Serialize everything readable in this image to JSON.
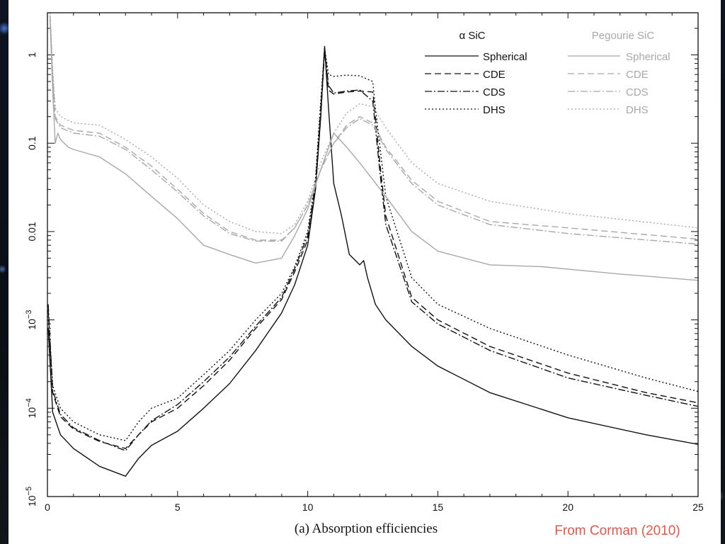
{
  "slide": {
    "caption": "(a) Absorption efficiencies",
    "credit": "From Corman (2010)"
  },
  "chart_data": {
    "type": "line",
    "title": "",
    "xlabel": "",
    "ylabel": "",
    "xlim": [
      0,
      25
    ],
    "ylim": [
      1e-05,
      3
    ],
    "yscale": "log",
    "x_ticks": [
      0,
      5,
      10,
      15,
      20,
      25
    ],
    "y_ticks": [
      {
        "value": 1e-05,
        "label": "10",
        "exp": "−5"
      },
      {
        "value": 0.0001,
        "label": "10",
        "exp": "−4"
      },
      {
        "value": 0.001,
        "label": "10",
        "exp": "−3"
      },
      {
        "value": 0.01,
        "label": "0.01",
        "exp": ""
      },
      {
        "value": 0.1,
        "label": "0.1",
        "exp": ""
      },
      {
        "value": 1,
        "label": "1",
        "exp": ""
      }
    ],
    "legend": {
      "placement": "top-right",
      "groups": [
        {
          "title": "α SiC",
          "color": "#111111",
          "entries": [
            "Spherical",
            "CDE",
            "CDS",
            "DHS"
          ]
        },
        {
          "title": "Pegourie SiC",
          "color": "#a8a8a8",
          "entries": [
            "Spherical",
            "CDE",
            "CDS",
            "DHS"
          ]
        }
      ]
    },
    "series": [
      {
        "name": "Spherical",
        "group": "α SiC",
        "color": "#111111",
        "dash": "solid",
        "points": [
          [
            0.03,
            0.0008
          ],
          [
            0.2,
            9e-05
          ],
          [
            0.5,
            5e-05
          ],
          [
            1,
            3.5e-05
          ],
          [
            2,
            2.2e-05
          ],
          [
            3,
            1.7e-05
          ],
          [
            3.5,
            2.7e-05
          ],
          [
            4,
            3.8e-05
          ],
          [
            5,
            5.5e-05
          ],
          [
            6,
            0.0001
          ],
          [
            7,
            0.00019
          ],
          [
            8,
            0.00045
          ],
          [
            9,
            0.0012
          ],
          [
            9.5,
            0.0025
          ],
          [
            10,
            0.007
          ],
          [
            10.3,
            0.03
          ],
          [
            10.5,
            0.2
          ],
          [
            10.65,
            1.25
          ],
          [
            10.8,
            0.25
          ],
          [
            11,
            0.035
          ],
          [
            11.3,
            0.015
          ],
          [
            11.6,
            0.0055
          ],
          [
            12,
            0.0042
          ],
          [
            12.15,
            0.0047
          ],
          [
            12.3,
            0.003
          ],
          [
            12.6,
            0.0015
          ],
          [
            13,
            0.001
          ],
          [
            14,
            0.0005
          ],
          [
            15,
            0.0003
          ],
          [
            17,
            0.00015
          ],
          [
            20,
            7.8e-05
          ],
          [
            23,
            5e-05
          ],
          [
            25,
            3.9e-05
          ]
        ]
      },
      {
        "name": "CDE",
        "group": "α SiC",
        "color": "#111111",
        "dash": "9,5",
        "points": [
          [
            0.03,
            0.0013
          ],
          [
            0.2,
            0.00015
          ],
          [
            0.5,
            8e-05
          ],
          [
            1,
            5.8e-05
          ],
          [
            2,
            4.2e-05
          ],
          [
            3,
            3.5e-05
          ],
          [
            3.5,
            5e-05
          ],
          [
            4,
            7e-05
          ],
          [
            5,
            0.0001
          ],
          [
            6,
            0.00018
          ],
          [
            7,
            0.00035
          ],
          [
            8,
            0.0008
          ],
          [
            9,
            0.0017
          ],
          [
            9.5,
            0.0035
          ],
          [
            10,
            0.008
          ],
          [
            10.3,
            0.03
          ],
          [
            10.5,
            0.2
          ],
          [
            10.65,
            1.1
          ],
          [
            10.8,
            0.4
          ],
          [
            11,
            0.36
          ],
          [
            11.5,
            0.38
          ],
          [
            12,
            0.39
          ],
          [
            12.5,
            0.38
          ],
          [
            12.6,
            0.2
          ],
          [
            12.8,
            0.05
          ],
          [
            13,
            0.015
          ],
          [
            14,
            0.0018
          ],
          [
            15,
            0.001
          ],
          [
            17,
            0.0005
          ],
          [
            20,
            0.00025
          ],
          [
            23,
            0.00015
          ],
          [
            25,
            0.000115
          ]
        ]
      },
      {
        "name": "CDS",
        "group": "α SiC",
        "color": "#111111",
        "dash": "10,3,2,3",
        "points": [
          [
            0.03,
            0.0015
          ],
          [
            0.2,
            0.00016
          ],
          [
            0.5,
            8.5e-05
          ],
          [
            1,
            6e-05
          ],
          [
            2,
            4.3e-05
          ],
          [
            3,
            3.3e-05
          ],
          [
            3.5,
            5e-05
          ],
          [
            4,
            7.2e-05
          ],
          [
            5,
            0.00011
          ],
          [
            6,
            0.0002
          ],
          [
            7,
            0.00038
          ],
          [
            8,
            0.00085
          ],
          [
            9,
            0.0018
          ],
          [
            9.5,
            0.0038
          ],
          [
            10,
            0.009
          ],
          [
            10.3,
            0.035
          ],
          [
            10.5,
            0.25
          ],
          [
            10.65,
            1.2
          ],
          [
            10.8,
            0.45
          ],
          [
            11,
            0.37
          ],
          [
            11.5,
            0.39
          ],
          [
            12,
            0.4
          ],
          [
            12.5,
            0.3
          ],
          [
            12.6,
            0.15
          ],
          [
            12.8,
            0.04
          ],
          [
            13,
            0.012
          ],
          [
            14,
            0.0016
          ],
          [
            15,
            0.0009
          ],
          [
            17,
            0.00045
          ],
          [
            20,
            0.00022
          ],
          [
            23,
            0.00014
          ],
          [
            25,
            0.000105
          ]
        ]
      },
      {
        "name": "DHS",
        "group": "α SiC",
        "color": "#111111",
        "dash": "2,3",
        "points": [
          [
            0.03,
            0.0011
          ],
          [
            0.2,
            0.00018
          ],
          [
            0.5,
            0.0001
          ],
          [
            1,
            7e-05
          ],
          [
            2,
            5e-05
          ],
          [
            3,
            4.3e-05
          ],
          [
            3.5,
            7e-05
          ],
          [
            4,
            0.0001
          ],
          [
            5,
            0.00013
          ],
          [
            6,
            0.00024
          ],
          [
            7,
            0.00045
          ],
          [
            8,
            0.001
          ],
          [
            9,
            0.002
          ],
          [
            9.5,
            0.004
          ],
          [
            10,
            0.01
          ],
          [
            10.3,
            0.04
          ],
          [
            10.5,
            0.3
          ],
          [
            10.65,
            1.2
          ],
          [
            10.8,
            0.6
          ],
          [
            11,
            0.57
          ],
          [
            11.5,
            0.59
          ],
          [
            12,
            0.58
          ],
          [
            12.5,
            0.5
          ],
          [
            12.6,
            0.25
          ],
          [
            12.8,
            0.08
          ],
          [
            13,
            0.025
          ],
          [
            14,
            0.003
          ],
          [
            15,
            0.0015
          ],
          [
            17,
            0.0008
          ],
          [
            20,
            0.0004
          ],
          [
            23,
            0.00022
          ],
          [
            25,
            0.000155
          ]
        ]
      },
      {
        "name": "Spherical",
        "group": "Pegourie SiC",
        "color": "#a8a8a8",
        "dash": "solid",
        "points": [
          [
            0.1,
            2.5
          ],
          [
            0.2,
            0.4
          ],
          [
            0.3,
            0.1
          ],
          [
            0.4,
            0.13
          ],
          [
            0.5,
            0.11
          ],
          [
            0.8,
            0.09
          ],
          [
            1,
            0.085
          ],
          [
            2,
            0.07
          ],
          [
            3,
            0.045
          ],
          [
            4,
            0.025
          ],
          [
            5,
            0.014
          ],
          [
            6,
            0.007
          ],
          [
            7,
            0.0055
          ],
          [
            8,
            0.0044
          ],
          [
            9,
            0.005
          ],
          [
            9.5,
            0.009
          ],
          [
            10,
            0.018
          ],
          [
            10.5,
            0.05
          ],
          [
            11,
            0.13
          ],
          [
            11.5,
            0.09
          ],
          [
            12,
            0.06
          ],
          [
            13,
            0.025
          ],
          [
            14,
            0.01
          ],
          [
            15,
            0.006
          ],
          [
            17,
            0.0042
          ],
          [
            19,
            0.004
          ],
          [
            22,
            0.0033
          ],
          [
            25,
            0.0028
          ]
        ]
      },
      {
        "name": "CDE",
        "group": "Pegourie SiC",
        "color": "#a8a8a8",
        "dash": "9,5",
        "points": [
          [
            0.1,
            2.8
          ],
          [
            0.2,
            0.6
          ],
          [
            0.3,
            0.2
          ],
          [
            0.5,
            0.16
          ],
          [
            1,
            0.14
          ],
          [
            2,
            0.13
          ],
          [
            3,
            0.09
          ],
          [
            4,
            0.055
          ],
          [
            5,
            0.03
          ],
          [
            6,
            0.016
          ],
          [
            7,
            0.01
          ],
          [
            8,
            0.008
          ],
          [
            9,
            0.008
          ],
          [
            9.5,
            0.011
          ],
          [
            10,
            0.02
          ],
          [
            10.5,
            0.05
          ],
          [
            11,
            0.1
          ],
          [
            11.5,
            0.16
          ],
          [
            12,
            0.2
          ],
          [
            12.5,
            0.17
          ],
          [
            13,
            0.09
          ],
          [
            14,
            0.038
          ],
          [
            15,
            0.022
          ],
          [
            17,
            0.013
          ],
          [
            20,
            0.011
          ],
          [
            25,
            0.0082
          ]
        ]
      },
      {
        "name": "CDS",
        "group": "Pegourie SiC",
        "color": "#a8a8a8",
        "dash": "10,3,2,3",
        "points": [
          [
            0.1,
            2.8
          ],
          [
            0.2,
            0.55
          ],
          [
            0.3,
            0.19
          ],
          [
            0.5,
            0.15
          ],
          [
            1,
            0.13
          ],
          [
            2,
            0.12
          ],
          [
            3,
            0.085
          ],
          [
            4,
            0.05
          ],
          [
            5,
            0.028
          ],
          [
            6,
            0.015
          ],
          [
            7,
            0.0095
          ],
          [
            8,
            0.0078
          ],
          [
            9,
            0.0078
          ],
          [
            9.5,
            0.011
          ],
          [
            10,
            0.02
          ],
          [
            10.5,
            0.05
          ],
          [
            11,
            0.1
          ],
          [
            11.5,
            0.15
          ],
          [
            12,
            0.19
          ],
          [
            12.5,
            0.16
          ],
          [
            13,
            0.085
          ],
          [
            14,
            0.035
          ],
          [
            15,
            0.02
          ],
          [
            17,
            0.012
          ],
          [
            20,
            0.0095
          ],
          [
            25,
            0.0072
          ]
        ]
      },
      {
        "name": "DHS",
        "group": "Pegourie SiC",
        "color": "#a8a8a8",
        "dash": "2,3",
        "points": [
          [
            0.1,
            3
          ],
          [
            0.2,
            0.7
          ],
          [
            0.3,
            0.25
          ],
          [
            0.5,
            0.2
          ],
          [
            1,
            0.17
          ],
          [
            2,
            0.16
          ],
          [
            3,
            0.11
          ],
          [
            4,
            0.07
          ],
          [
            5,
            0.04
          ],
          [
            6,
            0.02
          ],
          [
            7,
            0.013
          ],
          [
            8,
            0.01
          ],
          [
            9,
            0.0095
          ],
          [
            9.5,
            0.012
          ],
          [
            10,
            0.022
          ],
          [
            10.5,
            0.06
          ],
          [
            11,
            0.13
          ],
          [
            11.5,
            0.22
          ],
          [
            12,
            0.28
          ],
          [
            12.5,
            0.26
          ],
          [
            13,
            0.15
          ],
          [
            14,
            0.06
          ],
          [
            15,
            0.035
          ],
          [
            17,
            0.022
          ],
          [
            20,
            0.016
          ],
          [
            25,
            0.011
          ]
        ]
      }
    ]
  }
}
